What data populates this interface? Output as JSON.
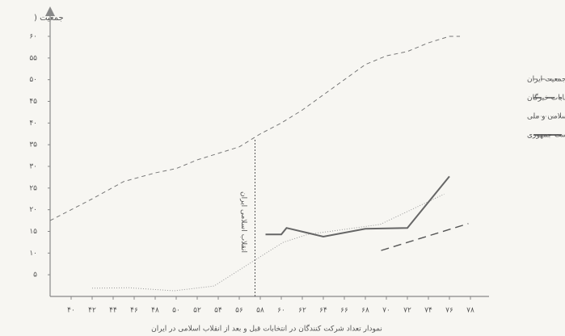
{
  "chart_data": {
    "type": "line",
    "title": "جمعیت (",
    "caption": "نمودار تعداد شرکت کنندگان در انتخابات قبل و بعد از انقلاب اسلامی در ایران",
    "annotation": {
      "text": "انقلاب اسلامی ایران",
      "x": 57.5
    },
    "xlim": [
      38,
      80
    ],
    "ylim": [
      0,
      60
    ],
    "xticks": [
      {
        "value": 40,
        "label": "۴۰"
      },
      {
        "value": 42,
        "label": "۴۲"
      },
      {
        "value": 44,
        "label": "۴۴"
      },
      {
        "value": 46,
        "label": "۴۶"
      },
      {
        "value": 48,
        "label": "۴۸"
      },
      {
        "value": 50,
        "label": "۵۰"
      },
      {
        "value": 52,
        "label": "۵۲"
      },
      {
        "value": 54,
        "label": "۵۴"
      },
      {
        "value": 56,
        "label": "۵۶"
      },
      {
        "value": 58,
        "label": "۵۸"
      },
      {
        "value": 60,
        "label": "۶۰"
      },
      {
        "value": 62,
        "label": "۶۲"
      },
      {
        "value": 64,
        "label": "۶۴"
      },
      {
        "value": 66,
        "label": "۶۶"
      },
      {
        "value": 68,
        "label": "۶۸"
      },
      {
        "value": 70,
        "label": "۷۰"
      },
      {
        "value": 72,
        "label": "۷۲"
      },
      {
        "value": 74,
        "label": "۷۴"
      },
      {
        "value": 76,
        "label": "۷۶"
      },
      {
        "value": 78,
        "label": "۷۸"
      }
    ],
    "yticks": [
      {
        "value": 5,
        "label": "۵"
      },
      {
        "value": 10,
        "label": "۱۰"
      },
      {
        "value": 15,
        "label": "۱۵"
      },
      {
        "value": 20,
        "label": "۲۰"
      },
      {
        "value": 25,
        "label": "۲۵"
      },
      {
        "value": 30,
        "label": "۳۰"
      },
      {
        "value": 35,
        "label": "۳۵"
      },
      {
        "value": 40,
        "label": "۴۰"
      },
      {
        "value": 45,
        "label": "۴۵"
      },
      {
        "value": 50,
        "label": "۵۰"
      },
      {
        "value": 55,
        "label": "۵۵"
      },
      {
        "value": 60,
        "label": "۶۰"
      }
    ],
    "legend": "right",
    "series": [
      {
        "name": "جمعیت ایران",
        "color": "#777777",
        "style": "dashed-fine",
        "x": [
          38,
          42,
          45,
          48,
          50,
          52,
          54,
          56,
          58,
          60,
          62,
          64,
          66,
          68,
          70,
          72,
          74,
          76,
          77
        ],
        "values": [
          17.5,
          22.5,
          26.5,
          28.5,
          29.5,
          31.5,
          33,
          34.5,
          37.5,
          40,
          43,
          46.5,
          50,
          53.5,
          55.5,
          56.5,
          58.5,
          60,
          60
        ]
      },
      {
        "name": "انتخابات خبرگان",
        "color": "#555555",
        "style": "dashed",
        "x": [
          69.5,
          77.8
        ],
        "values": [
          10.6,
          16.8
        ]
      },
      {
        "name": "انتخابات مجلس شورای اسلامی و ملی",
        "color": "#999999",
        "style": "dotted",
        "x": [
          42,
          45.5,
          49.8,
          53.6,
          57.5,
          60.2,
          62.5,
          65.5,
          69.4,
          75.5
        ],
        "values": [
          1.9,
          2,
          1.3,
          2.4,
          8.4,
          12.5,
          14.3,
          15.3,
          16.6,
          23.6
        ]
      },
      {
        "name": "انتخابات ریاست جمهوری",
        "color": "#666666",
        "style": "solid",
        "x": [
          58.5,
          60,
          60.5,
          64,
          68,
          72,
          76
        ],
        "values": [
          14.3,
          14.3,
          15.8,
          13.8,
          15.6,
          15.8,
          27.7
        ]
      }
    ]
  }
}
